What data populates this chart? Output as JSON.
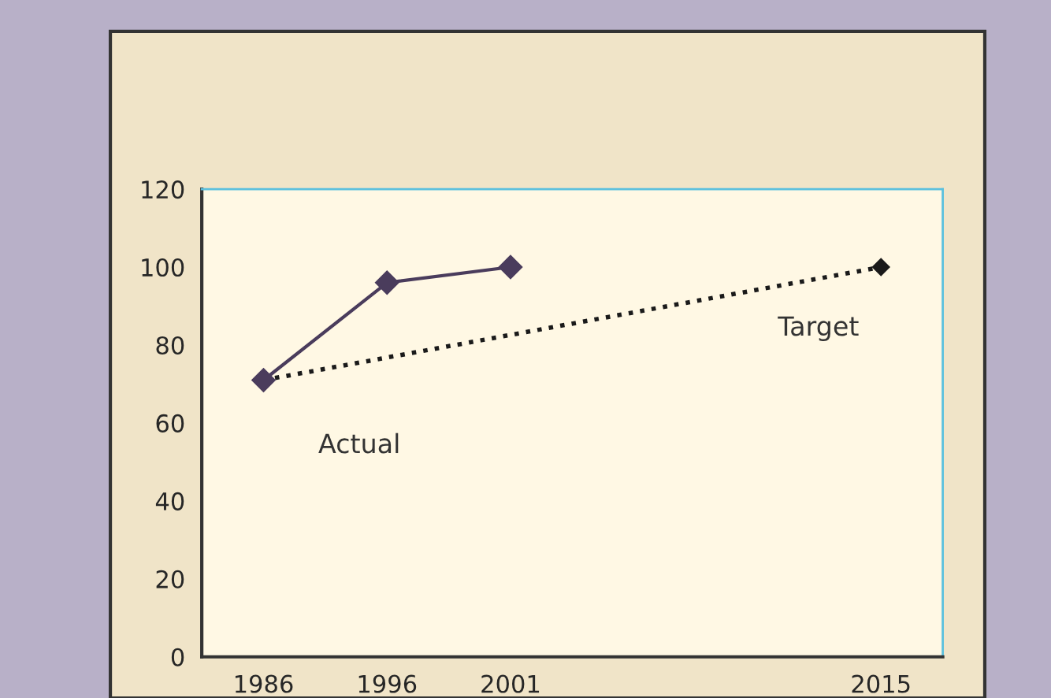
{
  "chart_data": {
    "type": "line",
    "categories": [
      "1986",
      "1996",
      "2001",
      null,
      null,
      "2015"
    ],
    "series": [
      {
        "name": "Actual",
        "color": "#4a3c5c",
        "line_style": "solid",
        "values": [
          71,
          96,
          100,
          null,
          null,
          null
        ]
      },
      {
        "name": "Target",
        "color": "#1a1a1a",
        "line_style": "dotted",
        "values": [
          71,
          null,
          null,
          null,
          null,
          100
        ]
      }
    ],
    "ylim": [
      0,
      120
    ],
    "yticks": [
      0,
      20,
      40,
      60,
      80,
      100,
      120
    ],
    "marker": "diamond",
    "grid": false,
    "legend": false
  }
}
